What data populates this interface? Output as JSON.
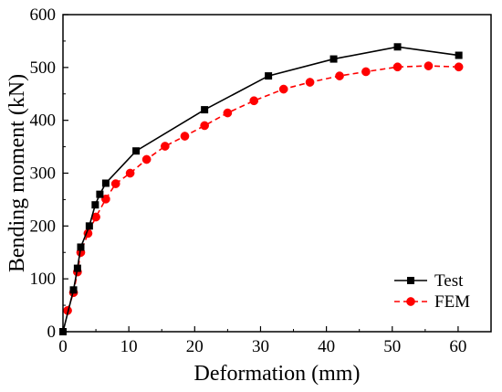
{
  "chart_data": {
    "type": "line",
    "title": "",
    "xlabel": "Deformation (mm)",
    "ylabel": "Bending moment (kN)",
    "xlim": [
      0,
      65
    ],
    "ylim": [
      0,
      600
    ],
    "xticks": [
      0,
      10,
      20,
      30,
      40,
      50,
      60
    ],
    "yticks": [
      0,
      100,
      200,
      300,
      400,
      500,
      600
    ],
    "grid": false,
    "legend_position": "bottom-right",
    "series": [
      {
        "name": "Test",
        "color": "#000000",
        "line_style": "solid",
        "marker": "square",
        "x": [
          0,
          1.6,
          2.2,
          2.7,
          4.0,
          4.9,
          5.6,
          6.5,
          11.1,
          21.5,
          31.2,
          41.1,
          50.8,
          60.1
        ],
        "y": [
          0,
          79,
          120,
          160,
          200,
          240,
          260,
          281,
          342,
          420,
          484,
          516,
          539,
          523
        ]
      },
      {
        "name": "FEM",
        "color": "#ff0000",
        "marker_fill": "#b33a1a",
        "line_style": "dashed",
        "marker": "circle",
        "x": [
          0.7,
          1.6,
          2.2,
          2.7,
          3.8,
          5.0,
          6.5,
          8.0,
          10.2,
          12.7,
          15.5,
          18.5,
          21.5,
          25.0,
          29.0,
          33.5,
          37.5,
          42.0,
          46.0,
          50.8,
          55.5,
          60.1
        ],
        "y": [
          40,
          74,
          113,
          150,
          186,
          217,
          251,
          280,
          300,
          326,
          351,
          370,
          390,
          414,
          437,
          459,
          472,
          484,
          492,
          501,
          503,
          501
        ]
      }
    ]
  }
}
